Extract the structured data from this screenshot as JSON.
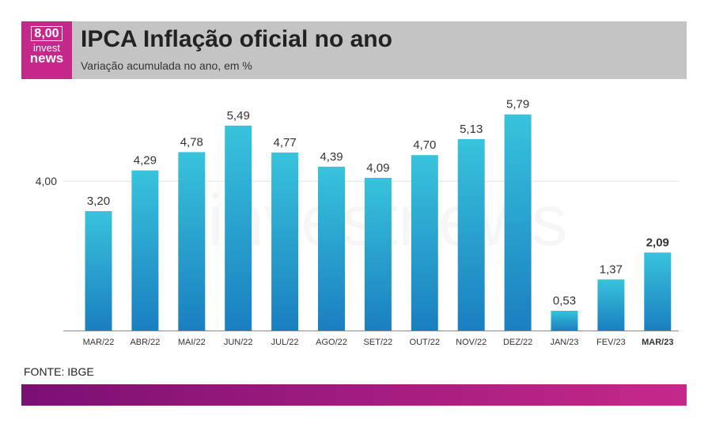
{
  "header": {
    "title": "IPCA Inflação oficial no ano",
    "subtitle": "Variação acumulada no ano, em %"
  },
  "logo": {
    "value": "8,00",
    "line1": "invest",
    "line2": "news"
  },
  "watermark": "investnews",
  "footer": {
    "source": "FONTE: IBGE"
  },
  "colors": {
    "bar_top": "#38c3dc",
    "bar_bottom": "#1a7fc0",
    "brand": "#c6288a",
    "brand_dark": "#7b0f73",
    "header_bg": "#c4c4c4"
  },
  "chart_data": {
    "type": "bar",
    "title": "IPCA Inflação oficial no ano",
    "subtitle": "Variação acumulada no ano, em %",
    "categories": [
      "MAR/22",
      "ABR/22",
      "MAI/22",
      "JUN/22",
      "JUL/22",
      "AGO/22",
      "SET/22",
      "OUT/22",
      "NOV/22",
      "DEZ/22",
      "JAN/23",
      "FEV/23",
      "MAR/23"
    ],
    "values": [
      3.2,
      4.29,
      4.78,
      5.49,
      4.77,
      4.39,
      4.09,
      4.7,
      5.13,
      5.79,
      0.53,
      1.37,
      2.09
    ],
    "value_labels": [
      "3,20",
      "4,29",
      "4,78",
      "5,49",
      "4,77",
      "4,39",
      "4,09",
      "4,70",
      "5,13",
      "5,79",
      "0,53",
      "1,37",
      "2,09"
    ],
    "highlight_index": 12,
    "yticks": [
      4.0
    ],
    "ytick_labels": [
      "4,00"
    ],
    "ylim": [
      0,
      5.79
    ],
    "xlabel": "",
    "ylabel": "",
    "grid": true
  }
}
